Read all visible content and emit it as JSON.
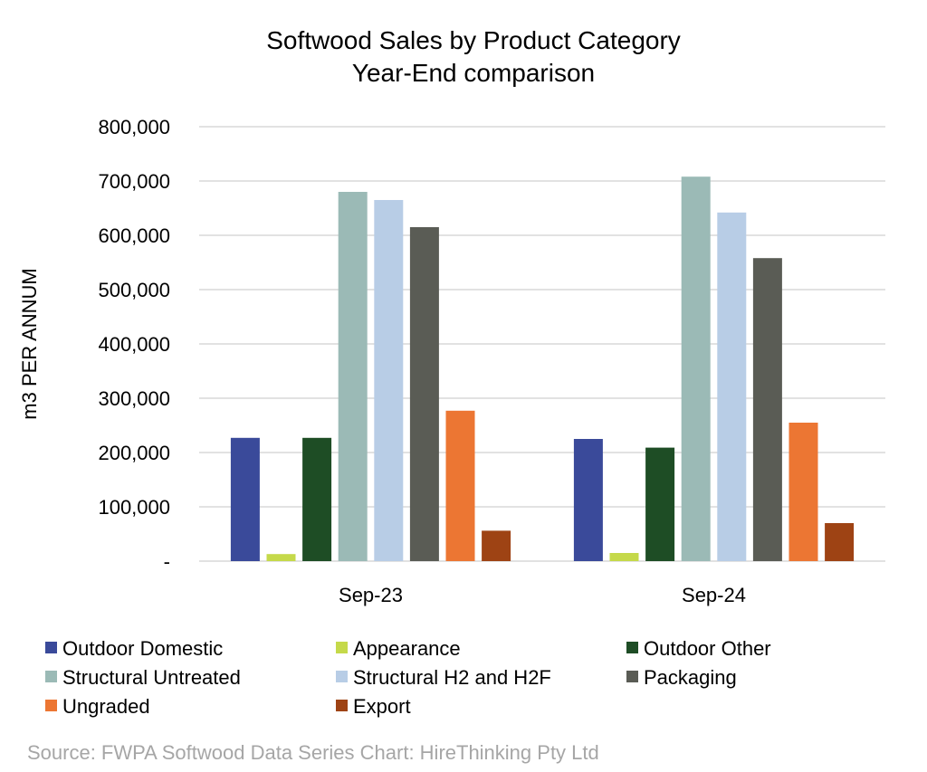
{
  "chart_data": {
    "type": "bar",
    "title": "Softwood Sales by Product Category",
    "subtitle": "Year-End comparison",
    "xlabel": "",
    "ylabel": "m3 PER ANNUM",
    "ylim": [
      0,
      800000
    ],
    "yticks": [
      0,
      100000,
      200000,
      300000,
      400000,
      500000,
      600000,
      700000,
      800000
    ],
    "ytick_labels": [
      "-",
      "100,000",
      "200,000",
      "300,000",
      "400,000",
      "500,000",
      "600,000",
      "700,000",
      "800,000"
    ],
    "grid": true,
    "legend_position": "bottom",
    "categories": [
      "Sep-23",
      "Sep-24"
    ],
    "series": [
      {
        "name": "Outdoor Domestic",
        "color": "#3a4a9a",
        "values": [
          227000,
          225000
        ]
      },
      {
        "name": "Appearance",
        "color": "#c5d94a",
        "values": [
          13000,
          15000
        ]
      },
      {
        "name": "Outdoor Other",
        "color": "#1e4d25",
        "values": [
          227000,
          209000
        ]
      },
      {
        "name": "Structural Untreated",
        "color": "#9bbab6",
        "values": [
          680000,
          708000
        ]
      },
      {
        "name": "Structural H2 and H2F",
        "color": "#b8cde6",
        "values": [
          665000,
          642000
        ]
      },
      {
        "name": "Packaging",
        "color": "#5a5c55",
        "values": [
          615000,
          558000
        ]
      },
      {
        "name": "Ungraded",
        "color": "#ec7633",
        "values": [
          277000,
          255000
        ]
      },
      {
        "name": "Export",
        "color": "#9e4314",
        "values": [
          56000,
          70000
        ]
      }
    ]
  },
  "source_note": "Source: FWPA Softwood Data Series Chart: HireThinking Pty Ltd"
}
